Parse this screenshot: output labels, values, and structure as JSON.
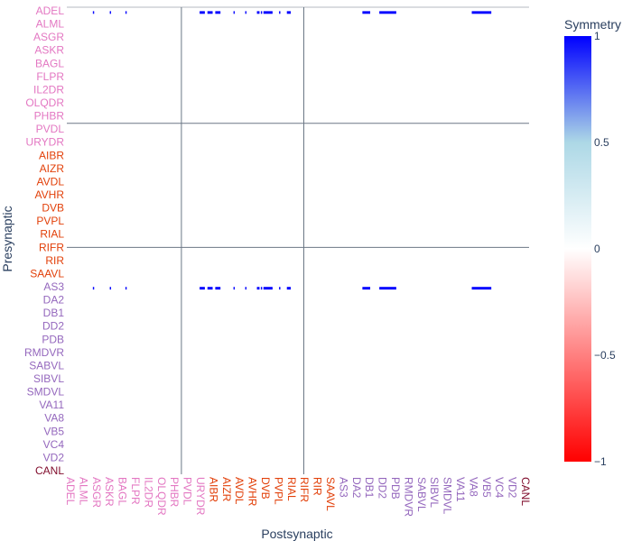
{
  "chart_data": {
    "type": "heatmap",
    "xlabel": "Postsynaptic",
    "ylabel": "Presynaptic",
    "colorbar": {
      "title": "Symmetry",
      "range": [
        -1,
        1
      ],
      "ticks": [
        {
          "value": 1,
          "label": "1"
        },
        {
          "value": 0.5,
          "label": "0.5"
        },
        {
          "value": 0,
          "label": "0"
        },
        {
          "value": -0.5,
          "label": "−0.5"
        },
        {
          "value": -1,
          "label": "−1"
        }
      ],
      "colorscale": [
        "#ff0000",
        "#ffffff",
        "#add8e6",
        "#0000ff"
      ]
    },
    "group_colors": {
      "sensory": "#e377c2",
      "interneuron": "#e2400a",
      "motor": "#9467bd",
      "other": "#7f0a2a"
    },
    "y_ticks": [
      {
        "label": "ADEL",
        "group": "sensory"
      },
      {
        "label": "ALML",
        "group": "sensory"
      },
      {
        "label": "ASGR",
        "group": "sensory"
      },
      {
        "label": "ASKR",
        "group": "sensory"
      },
      {
        "label": "BAGL",
        "group": "sensory"
      },
      {
        "label": "FLPR",
        "group": "sensory"
      },
      {
        "label": "IL2DR",
        "group": "sensory"
      },
      {
        "label": "OLQDR",
        "group": "sensory"
      },
      {
        "label": "PHBR",
        "group": "sensory"
      },
      {
        "label": "PVDL",
        "group": "sensory"
      },
      {
        "label": "URYDR",
        "group": "sensory"
      },
      {
        "label": "AIBR",
        "group": "interneuron"
      },
      {
        "label": "AIZR",
        "group": "interneuron"
      },
      {
        "label": "AVDL",
        "group": "interneuron"
      },
      {
        "label": "AVHR",
        "group": "interneuron"
      },
      {
        "label": "DVB",
        "group": "interneuron"
      },
      {
        "label": "PVPL",
        "group": "interneuron"
      },
      {
        "label": "RIAL",
        "group": "interneuron"
      },
      {
        "label": "RIFR",
        "group": "interneuron"
      },
      {
        "label": "RIR",
        "group": "interneuron"
      },
      {
        "label": "SAAVL",
        "group": "interneuron"
      },
      {
        "label": "AS3",
        "group": "motor"
      },
      {
        "label": "DA2",
        "group": "motor"
      },
      {
        "label": "DB1",
        "group": "motor"
      },
      {
        "label": "DD2",
        "group": "motor"
      },
      {
        "label": "PDB",
        "group": "motor"
      },
      {
        "label": "RMDVR",
        "group": "motor"
      },
      {
        "label": "SABVL",
        "group": "motor"
      },
      {
        "label": "SIBVL",
        "group": "motor"
      },
      {
        "label": "SMDVL",
        "group": "motor"
      },
      {
        "label": "VA11",
        "group": "motor"
      },
      {
        "label": "VA8",
        "group": "motor"
      },
      {
        "label": "VB5",
        "group": "motor"
      },
      {
        "label": "VC4",
        "group": "motor"
      },
      {
        "label": "VD2",
        "group": "motor"
      },
      {
        "label": "CANL",
        "group": "other"
      }
    ],
    "x_ticks": [
      {
        "label": "ADEL",
        "group": "sensory"
      },
      {
        "label": "ALML",
        "group": "sensory"
      },
      {
        "label": "ASGR",
        "group": "sensory"
      },
      {
        "label": "ASKR",
        "group": "sensory"
      },
      {
        "label": "BAGL",
        "group": "sensory"
      },
      {
        "label": "FLPR",
        "group": "sensory"
      },
      {
        "label": "IL2DR",
        "group": "sensory"
      },
      {
        "label": "OLQDR",
        "group": "sensory"
      },
      {
        "label": "PHBR",
        "group": "sensory"
      },
      {
        "label": "PVDL",
        "group": "sensory"
      },
      {
        "label": "URYDR",
        "group": "sensory"
      },
      {
        "label": "AIBR",
        "group": "interneuron"
      },
      {
        "label": "AIZR",
        "group": "interneuron"
      },
      {
        "label": "AVDL",
        "group": "interneuron"
      },
      {
        "label": "AVHR",
        "group": "interneuron"
      },
      {
        "label": "DVB",
        "group": "interneuron"
      },
      {
        "label": "PVPL",
        "group": "interneuron"
      },
      {
        "label": "RIAL",
        "group": "interneuron"
      },
      {
        "label": "RIFR",
        "group": "interneuron"
      },
      {
        "label": "RIR",
        "group": "interneuron"
      },
      {
        "label": "SAAVL",
        "group": "interneuron"
      },
      {
        "label": "AS3",
        "group": "motor"
      },
      {
        "label": "DA2",
        "group": "motor"
      },
      {
        "label": "DB1",
        "group": "motor"
      },
      {
        "label": "DD2",
        "group": "motor"
      },
      {
        "label": "PDB",
        "group": "motor"
      },
      {
        "label": "RMDVR",
        "group": "motor"
      },
      {
        "label": "SABVL",
        "group": "motor"
      },
      {
        "label": "SIBVL",
        "group": "motor"
      },
      {
        "label": "SMDVL",
        "group": "motor"
      },
      {
        "label": "VA11",
        "group": "motor"
      },
      {
        "label": "VA8",
        "group": "motor"
      },
      {
        "label": "VB5",
        "group": "motor"
      },
      {
        "label": "VC4",
        "group": "motor"
      },
      {
        "label": "VD2",
        "group": "motor"
      },
      {
        "label": "CANL",
        "group": "other"
      }
    ],
    "row_count": 354,
    "col_count": 355,
    "group_boundaries_rows": [
      88,
      182
    ],
    "group_boundaries_cols": [
      88,
      182
    ],
    "cells": [
      {
        "rows": [
          3,
          5
        ],
        "cols": [
          [
            20,
            21
          ],
          [
            33,
            34
          ],
          [
            45,
            46
          ],
          [
            102,
            106
          ],
          [
            108,
            112
          ],
          [
            114,
            118
          ],
          [
            128,
            129
          ],
          [
            137,
            138
          ],
          [
            146,
            148
          ],
          [
            149,
            150
          ],
          [
            151,
            158
          ],
          [
            163,
            164
          ],
          [
            169,
            172
          ],
          [
            227,
            233
          ],
          [
            240,
            253
          ],
          [
            311,
            326
          ]
        ],
        "value": 1
      },
      {
        "rows": [
          212,
          214
        ],
        "cols": [
          [
            20,
            21
          ],
          [
            33,
            34
          ],
          [
            45,
            46
          ],
          [
            102,
            106
          ],
          [
            108,
            112
          ],
          [
            114,
            118
          ],
          [
            128,
            129
          ],
          [
            137,
            138
          ],
          [
            146,
            148
          ],
          [
            149,
            150
          ],
          [
            151,
            158
          ],
          [
            163,
            164
          ],
          [
            169,
            172
          ],
          [
            227,
            233
          ],
          [
            240,
            253
          ],
          [
            311,
            326
          ]
        ],
        "value": 1
      }
    ]
  }
}
